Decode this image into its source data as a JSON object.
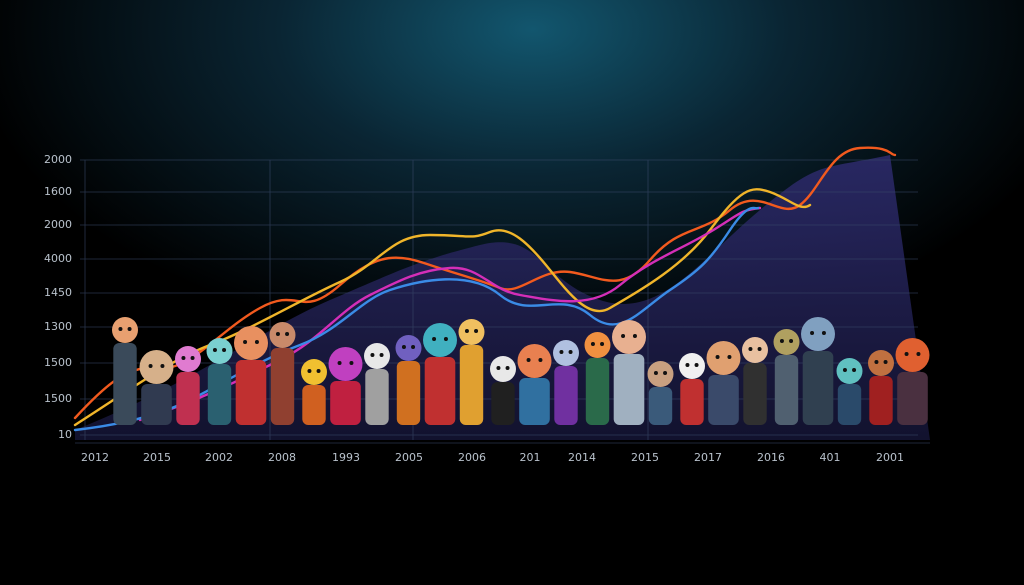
{
  "y_axis_labels": [
    "2000",
    "1600",
    "2000",
    "4000",
    "1450",
    "1300",
    "1500",
    "1500",
    "10"
  ],
  "x_axis_labels": [
    "2012",
    "2015",
    "2002",
    "2008",
    "1993",
    "2005",
    "2006",
    "201",
    "2014",
    "2015",
    "2017",
    "2016",
    "401",
    "2001"
  ]
}
